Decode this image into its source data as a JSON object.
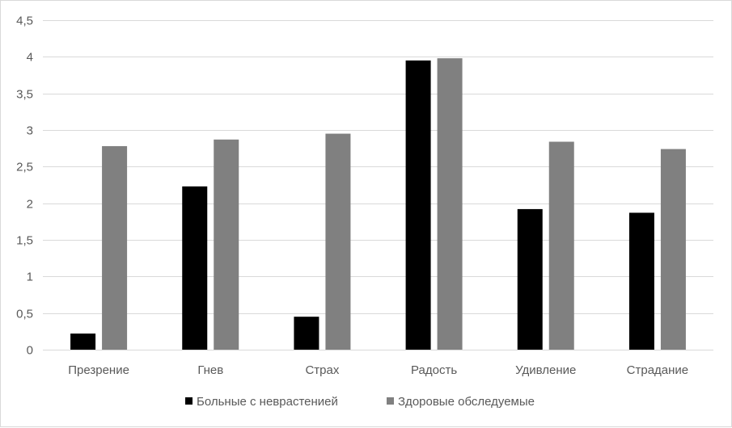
{
  "chart_data": {
    "type": "bar",
    "categories": [
      "Презрение",
      "Гнев",
      "Страх",
      "Радость",
      "Удивление",
      "Страдание"
    ],
    "series": [
      {
        "name": "Больные с неврастенией",
        "color": "#000000",
        "values": [
          0.22,
          2.23,
          0.45,
          3.95,
          1.92,
          1.87
        ]
      },
      {
        "name": "Здоровые обследуемые",
        "color": "#808080",
        "values": [
          2.78,
          2.87,
          2.95,
          3.98,
          2.84,
          2.74
        ]
      }
    ],
    "ylim": [
      0,
      4.5
    ],
    "y_ticks": [
      "0",
      "0,5",
      "1",
      "1,5",
      "2",
      "2,5",
      "3",
      "3,5",
      "4",
      "4,5"
    ],
    "y_tick_values": [
      0,
      0.5,
      1,
      1.5,
      2,
      2.5,
      3,
      3.5,
      4,
      4.5
    ],
    "grid": true,
    "legend_position": "bottom",
    "title": "",
    "xlabel": "",
    "ylabel": ""
  }
}
